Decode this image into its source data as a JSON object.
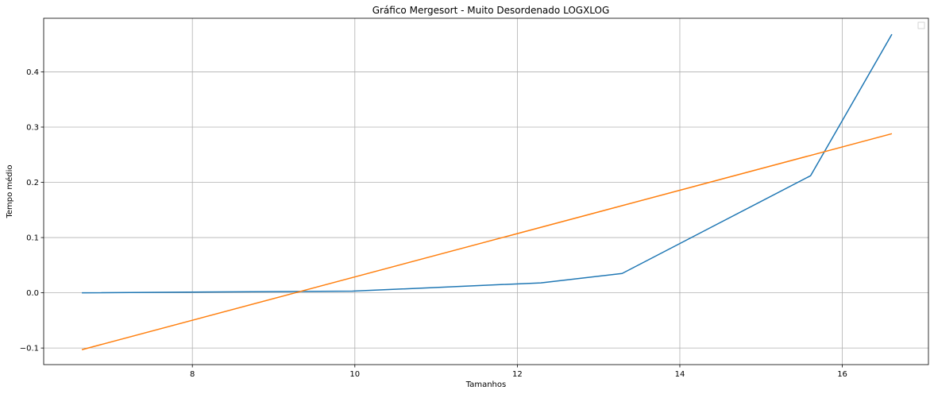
{
  "chart_data": {
    "type": "line",
    "title": "Gráfico Mergesort - Muito Desordenado LOGXLOG",
    "xlabel": "Tamanhos",
    "ylabel": "Tempo médio",
    "xlim": [
      6.17,
      17.06
    ],
    "ylim": [
      -0.13,
      0.497
    ],
    "xticks": [
      8,
      10,
      12,
      14,
      16
    ],
    "xtick_labels": [
      "8",
      "10",
      "12",
      "14",
      "16"
    ],
    "yticks": [
      -0.1,
      0.0,
      0.1,
      0.2,
      0.3,
      0.4
    ],
    "ytick_labels": [
      "−0.1",
      "0.0",
      "0.1",
      "0.2",
      "0.3",
      "0.4"
    ],
    "grid": true,
    "legend": "top-right (empty)",
    "series": [
      {
        "color": "#1f77b4",
        "x": [
          6.64,
          9.97,
          12.29,
          13.29,
          15.61,
          16.61
        ],
        "y": [
          0.0,
          0.003,
          0.018,
          0.035,
          0.212,
          0.468
        ]
      },
      {
        "color": "#ff7f0e",
        "x": [
          6.64,
          16.61
        ],
        "y": [
          -0.103,
          0.288
        ]
      }
    ]
  }
}
